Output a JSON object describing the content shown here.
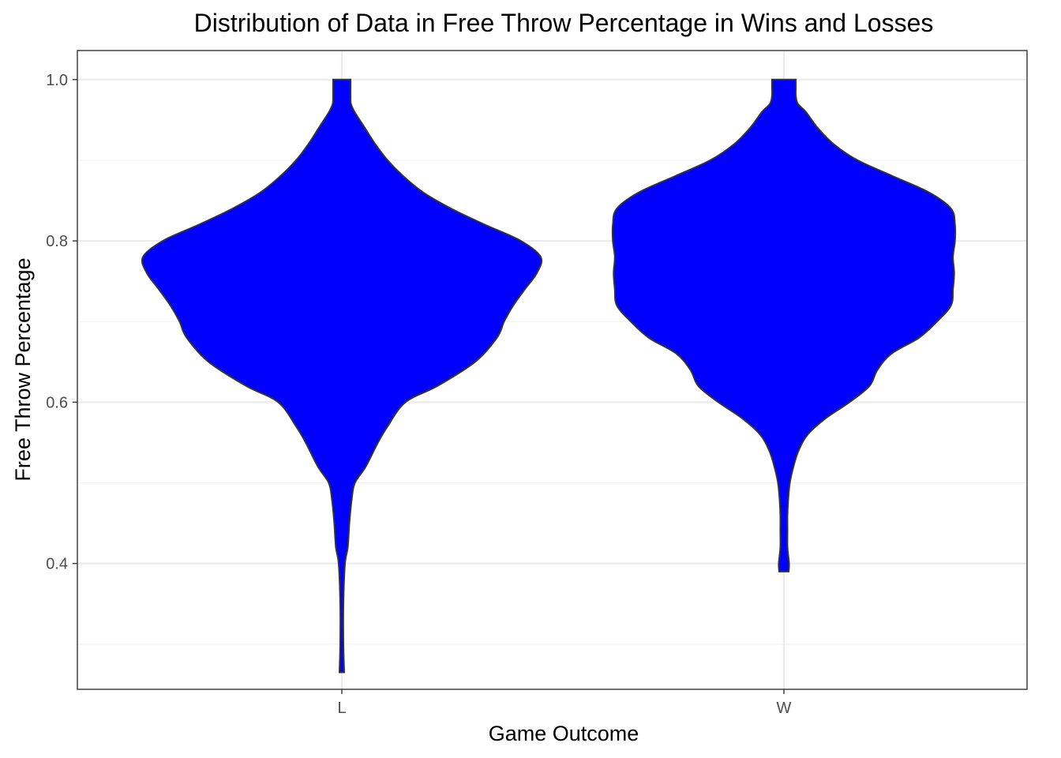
{
  "chart_data": {
    "type": "violin",
    "title": "Distribution of Data in Free Throw Percentage in Wins and Losses",
    "xlabel": "Game Outcome",
    "ylabel": "Free Throw Percentage",
    "categories": [
      "L",
      "W"
    ],
    "ylim": [
      0.244,
      1.036
    ],
    "y_ticks": [
      0.4,
      0.6,
      0.8,
      1.0
    ],
    "y_tick_labels": [
      "0.4",
      "0.6",
      "0.8",
      "1.0"
    ],
    "y_minor_ticks": [
      0.3,
      0.5,
      0.7,
      0.9
    ],
    "grid": true,
    "fill_color": "#0000ff",
    "outline_color": "#333333",
    "violins": [
      {
        "name": "L",
        "min": 0.265,
        "max": 1.0,
        "profile": [
          [
            0.265,
            0.006
          ],
          [
            0.3,
            0.004
          ],
          [
            0.35,
            0.004
          ],
          [
            0.4,
            0.008
          ],
          [
            0.42,
            0.015
          ],
          [
            0.45,
            0.019
          ],
          [
            0.48,
            0.025
          ],
          [
            0.5,
            0.033
          ],
          [
            0.52,
            0.06
          ],
          [
            0.55,
            0.091
          ],
          [
            0.57,
            0.115
          ],
          [
            0.6,
            0.16
          ],
          [
            0.62,
            0.24
          ],
          [
            0.65,
            0.335
          ],
          [
            0.68,
            0.39
          ],
          [
            0.7,
            0.408
          ],
          [
            0.72,
            0.431
          ],
          [
            0.74,
            0.46
          ],
          [
            0.76,
            0.49
          ],
          [
            0.78,
            0.5
          ],
          [
            0.8,
            0.45
          ],
          [
            0.82,
            0.36
          ],
          [
            0.84,
            0.275
          ],
          [
            0.86,
            0.205
          ],
          [
            0.88,
            0.155
          ],
          [
            0.9,
            0.115
          ],
          [
            0.92,
            0.084
          ],
          [
            0.94,
            0.058
          ],
          [
            0.96,
            0.032
          ],
          [
            0.97,
            0.023
          ],
          [
            0.98,
            0.022
          ],
          [
            0.99,
            0.022
          ],
          [
            1.0,
            0.022
          ]
        ]
      },
      {
        "name": "W",
        "min": 0.39,
        "max": 1.0,
        "profile": [
          [
            0.39,
            0.012
          ],
          [
            0.4,
            0.013
          ],
          [
            0.42,
            0.009
          ],
          [
            0.44,
            0.009
          ],
          [
            0.46,
            0.009
          ],
          [
            0.48,
            0.011
          ],
          [
            0.5,
            0.015
          ],
          [
            0.52,
            0.024
          ],
          [
            0.54,
            0.037
          ],
          [
            0.56,
            0.06
          ],
          [
            0.58,
            0.105
          ],
          [
            0.6,
            0.165
          ],
          [
            0.62,
            0.215
          ],
          [
            0.64,
            0.235
          ],
          [
            0.66,
            0.27
          ],
          [
            0.68,
            0.34
          ],
          [
            0.7,
            0.385
          ],
          [
            0.72,
            0.42
          ],
          [
            0.74,
            0.425
          ],
          [
            0.76,
            0.428
          ],
          [
            0.78,
            0.425
          ],
          [
            0.8,
            0.43
          ],
          [
            0.82,
            0.43
          ],
          [
            0.84,
            0.42
          ],
          [
            0.86,
            0.365
          ],
          [
            0.88,
            0.275
          ],
          [
            0.9,
            0.185
          ],
          [
            0.92,
            0.125
          ],
          [
            0.94,
            0.085
          ],
          [
            0.96,
            0.055
          ],
          [
            0.97,
            0.035
          ],
          [
            0.98,
            0.03
          ],
          [
            0.99,
            0.03
          ],
          [
            1.0,
            0.03
          ]
        ]
      }
    ]
  }
}
